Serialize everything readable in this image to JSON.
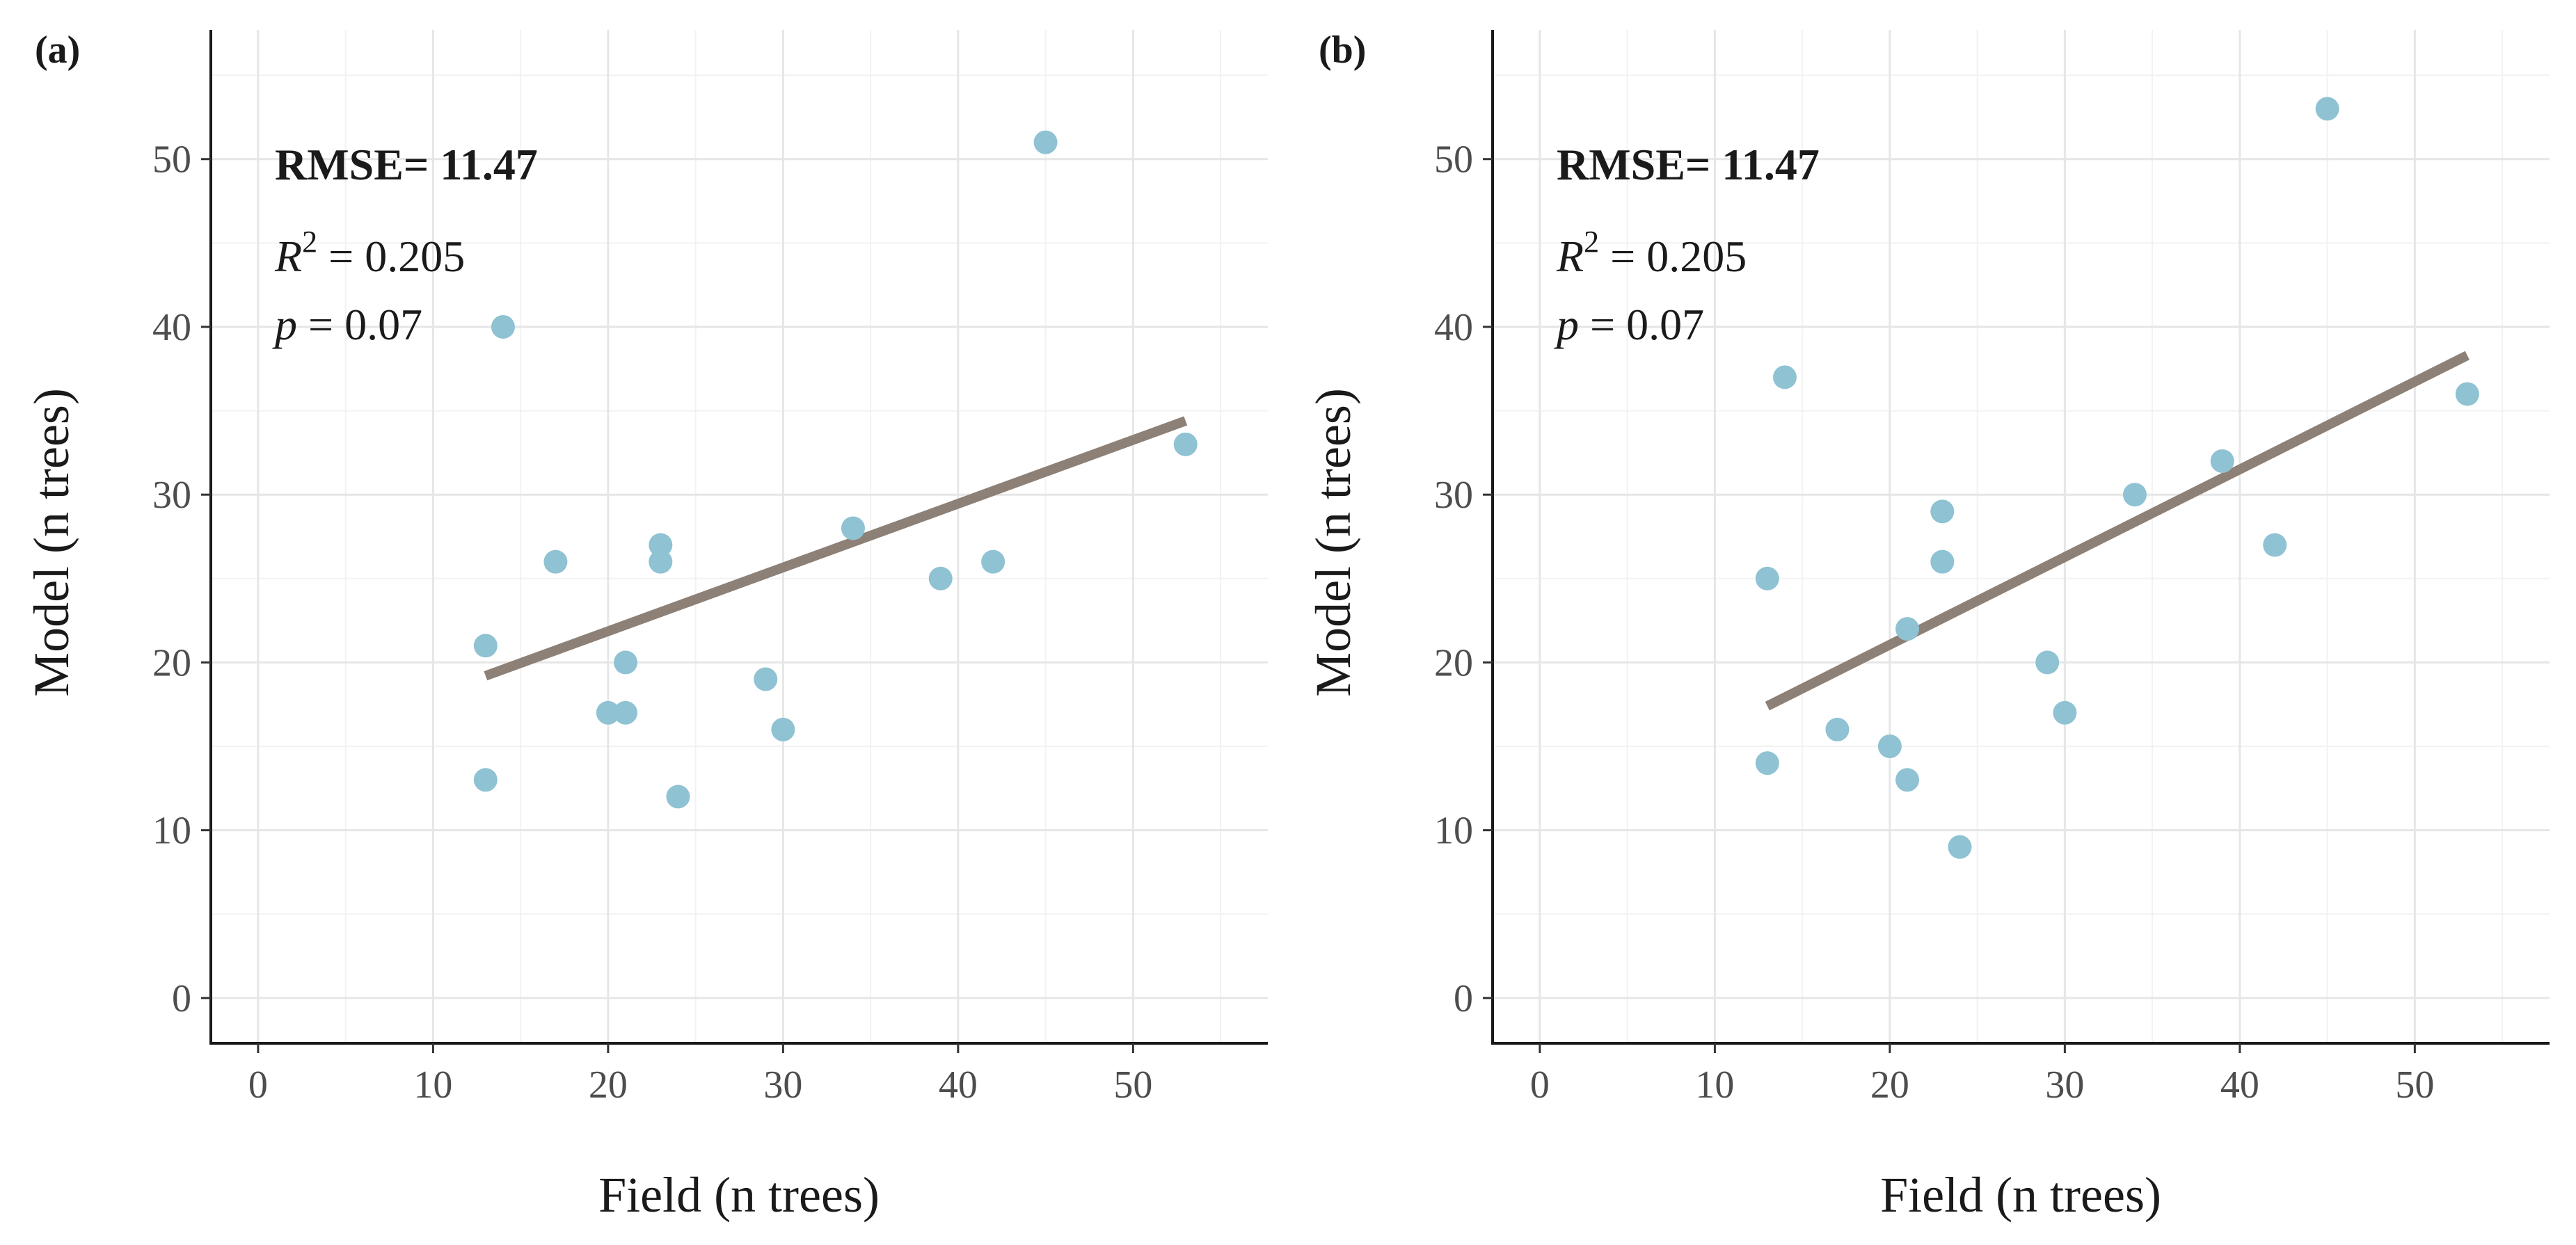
{
  "figure": {
    "colors": {
      "point": "#8fc2d2",
      "line": "#8d8076",
      "grid_major": "#e6e6e6",
      "grid_minor": "#f2f2f2",
      "axis": "#1a1a1a"
    }
  },
  "chart_data": [
    {
      "type": "scatter",
      "panel_label": "(a)",
      "xlabel": "Field (n trees)",
      "ylabel": "Model (n trees)",
      "xlim": [
        -2.7,
        57.7
      ],
      "ylim": [
        -2.7,
        57.7
      ],
      "xticks": [
        0,
        10,
        20,
        30,
        40,
        50
      ],
      "yticks": [
        0,
        10,
        20,
        30,
        40,
        50
      ],
      "grid": true,
      "annotations": {
        "rmse": "RMSE= 11.47",
        "r2_symbol": "R",
        "r2_exp": "2",
        "r2_rest": " = 0.205",
        "p_symbol": "p",
        "p_rest": " = 0.07"
      },
      "points": [
        {
          "x": 13,
          "y": 21
        },
        {
          "x": 13,
          "y": 13
        },
        {
          "x": 14,
          "y": 40
        },
        {
          "x": 17,
          "y": 26
        },
        {
          "x": 20,
          "y": 17
        },
        {
          "x": 21,
          "y": 17
        },
        {
          "x": 21,
          "y": 20
        },
        {
          "x": 23,
          "y": 27
        },
        {
          "x": 23,
          "y": 26
        },
        {
          "x": 24,
          "y": 12
        },
        {
          "x": 29,
          "y": 19
        },
        {
          "x": 30,
          "y": 16
        },
        {
          "x": 34,
          "y": 28
        },
        {
          "x": 39,
          "y": 25
        },
        {
          "x": 42,
          "y": 26
        },
        {
          "x": 45,
          "y": 51
        },
        {
          "x": 53,
          "y": 33
        }
      ],
      "fit_line": {
        "x": [
          13,
          53
        ],
        "y": [
          19.2,
          34.4
        ]
      }
    },
    {
      "type": "scatter",
      "panel_label": "(b)",
      "xlabel": "Field (n trees)",
      "ylabel": "Model (n trees)",
      "xlim": [
        -2.7,
        57.7
      ],
      "ylim": [
        -2.7,
        57.7
      ],
      "xticks": [
        0,
        10,
        20,
        30,
        40,
        50
      ],
      "yticks": [
        0,
        10,
        20,
        30,
        40,
        50
      ],
      "grid": true,
      "annotations": {
        "rmse": "RMSE= 11.47",
        "r2_symbol": "R",
        "r2_exp": "2",
        "r2_rest": " = 0.205",
        "p_symbol": "p",
        "p_rest": " = 0.07"
      },
      "points": [
        {
          "x": 13,
          "y": 25
        },
        {
          "x": 13,
          "y": 14
        },
        {
          "x": 14,
          "y": 37
        },
        {
          "x": 17,
          "y": 16
        },
        {
          "x": 20,
          "y": 15
        },
        {
          "x": 21,
          "y": 22
        },
        {
          "x": 21,
          "y": 13
        },
        {
          "x": 23,
          "y": 29
        },
        {
          "x": 23,
          "y": 26
        },
        {
          "x": 24,
          "y": 9
        },
        {
          "x": 29,
          "y": 20
        },
        {
          "x": 30,
          "y": 17
        },
        {
          "x": 34,
          "y": 30
        },
        {
          "x": 39,
          "y": 32
        },
        {
          "x": 42,
          "y": 27
        },
        {
          "x": 45,
          "y": 53
        },
        {
          "x": 53,
          "y": 36
        }
      ],
      "fit_line": {
        "x": [
          13,
          53
        ],
        "y": [
          17.4,
          38.3
        ]
      }
    }
  ]
}
